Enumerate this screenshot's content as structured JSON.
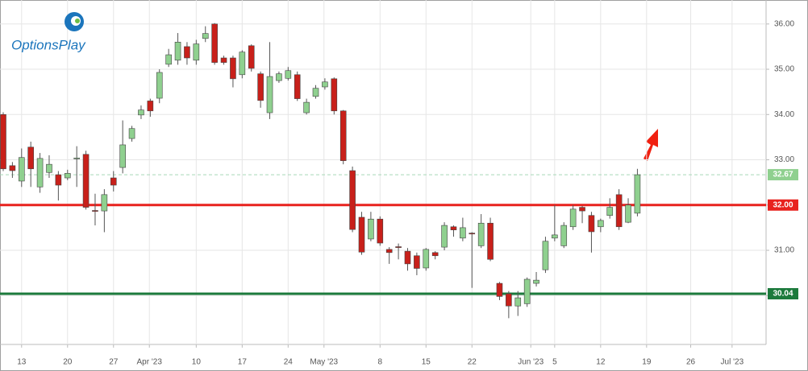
{
  "logo": "OptionsPlay",
  "chart_data": {
    "type": "candlestick",
    "open": [
      34.0,
      32.87,
      32.53,
      33.28,
      32.4,
      32.72,
      32.67,
      32.6,
      33.02,
      33.12,
      31.88,
      31.87,
      32.6,
      32.83,
      33.47,
      33.99,
      34.3,
      34.36,
      35.11,
      35.2,
      35.5,
      35.2,
      35.68,
      36.0,
      35.25,
      35.25,
      34.88,
      35.52,
      34.9,
      34.04,
      34.75,
      34.8,
      34.88,
      34.04,
      34.4,
      34.61,
      34.79,
      34.08,
      32.76,
      31.73,
      31.25,
      31.69,
      31.02,
      31.08,
      30.98,
      30.88,
      30.61,
      30.95,
      31.07,
      31.52,
      31.27,
      31.38,
      31.1,
      31.6,
      30.27,
      30.04,
      29.77,
      29.82,
      30.27,
      30.57,
      31.27,
      31.1,
      31.52,
      31.95,
      31.77,
      31.52,
      31.77,
      32.23,
      31.62,
      31.82
    ],
    "high": [
      34.05,
      32.95,
      33.25,
      33.4,
      33.15,
      33.1,
      32.75,
      32.78,
      33.3,
      33.2,
      32.25,
      32.35,
      32.75,
      33.87,
      33.75,
      34.2,
      34.35,
      35.0,
      35.45,
      35.8,
      35.6,
      35.65,
      35.95,
      36.02,
      35.3,
      35.3,
      35.42,
      35.55,
      34.95,
      35.6,
      34.95,
      35.05,
      34.95,
      34.35,
      34.65,
      34.8,
      34.82,
      34.1,
      32.85,
      31.85,
      31.85,
      31.75,
      31.07,
      31.15,
      31.05,
      30.95,
      31.05,
      30.98,
      31.62,
      31.55,
      31.72,
      31.4,
      31.8,
      31.72,
      30.3,
      30.1,
      30.1,
      30.4,
      30.52,
      31.3,
      32.0,
      31.62,
      32.0,
      31.98,
      31.85,
      31.7,
      32.15,
      32.35,
      32.15,
      32.8
    ],
    "low": [
      32.75,
      32.6,
      32.4,
      32.4,
      32.27,
      32.6,
      32.1,
      32.55,
      32.4,
      31.9,
      31.55,
      31.4,
      32.3,
      32.7,
      33.4,
      33.9,
      33.95,
      34.25,
      35.05,
      35.1,
      35.1,
      35.1,
      35.6,
      35.1,
      35.1,
      34.6,
      34.8,
      34.95,
      34.15,
      33.9,
      34.7,
      34.75,
      34.3,
      34.0,
      34.35,
      34.55,
      34.0,
      32.9,
      31.4,
      30.9,
      31.2,
      31.1,
      30.7,
      30.8,
      30.55,
      30.45,
      30.55,
      30.8,
      31.0,
      31.3,
      31.2,
      30.17,
      31.05,
      30.76,
      29.9,
      29.5,
      29.55,
      29.75,
      30.2,
      30.5,
      31.2,
      31.05,
      31.45,
      31.6,
      30.95,
      31.4,
      31.7,
      31.45,
      31.6,
      31.75
    ],
    "close": [
      32.8,
      32.76,
      33.05,
      32.8,
      33.03,
      32.9,
      32.44,
      32.7,
      33.04,
      31.95,
      31.86,
      32.23,
      32.44,
      33.33,
      33.69,
      34.1,
      34.08,
      34.93,
      35.32,
      35.6,
      35.25,
      35.56,
      35.79,
      35.15,
      35.15,
      34.79,
      35.38,
      35.02,
      34.31,
      34.84,
      34.9,
      34.97,
      34.35,
      34.27,
      34.58,
      34.72,
      34.08,
      32.98,
      31.46,
      30.96,
      31.69,
      31.16,
      30.95,
      31.06,
      30.7,
      30.6,
      31.02,
      30.88,
      31.55,
      31.45,
      31.5,
      31.36,
      31.6,
      30.8,
      29.98,
      29.77,
      29.95,
      30.36,
      30.34,
      31.2,
      31.34,
      31.55,
      31.91,
      31.87,
      31.41,
      31.66,
      31.95,
      31.52,
      32.0,
      32.67
    ],
    "up_color": "#8fd08f",
    "down_color": "#c8201a",
    "ylim": [
      28.92,
      36.53
    ],
    "yticks": [
      {
        "value": 30,
        "label": "30.00"
      },
      {
        "value": 31,
        "label": "31.00"
      },
      {
        "value": 32,
        "label": "32.00"
      },
      {
        "value": 33,
        "label": "33.00"
      },
      {
        "value": 34,
        "label": "34.00"
      },
      {
        "value": 35,
        "label": "35.00"
      },
      {
        "value": 36,
        "label": "36.00"
      }
    ],
    "xlim": [
      -0.35,
      83
    ],
    "xticks": [
      {
        "value": 2,
        "label": "13"
      },
      {
        "value": 7,
        "label": "20"
      },
      {
        "value": 12,
        "label": "27"
      },
      {
        "value": 15.9,
        "label": "Apr '23"
      },
      {
        "value": 21,
        "label": "10"
      },
      {
        "value": 26,
        "label": "17"
      },
      {
        "value": 31,
        "label": "24"
      },
      {
        "value": 34.9,
        "label": "May '23"
      },
      {
        "value": 41,
        "label": "8"
      },
      {
        "value": 46,
        "label": "15"
      },
      {
        "value": 51,
        "label": "22"
      },
      {
        "value": 57.4,
        "label": "Jun '23"
      },
      {
        "value": 60,
        "label": "5"
      },
      {
        "value": 65,
        "label": "12"
      },
      {
        "value": 70,
        "label": "19"
      },
      {
        "value": 74.8,
        "label": "26"
      },
      {
        "value": 79.3,
        "label": "Jul '23"
      }
    ],
    "grid": true,
    "levels": [
      {
        "value": 32,
        "label": "32.00",
        "color": "#e8221e"
      },
      {
        "value": 30.04,
        "label": "30.04",
        "color": "#1c7a3c"
      }
    ],
    "last_price": {
      "value": 32.67,
      "label": "32.67",
      "color": "#8fd08f"
    }
  }
}
